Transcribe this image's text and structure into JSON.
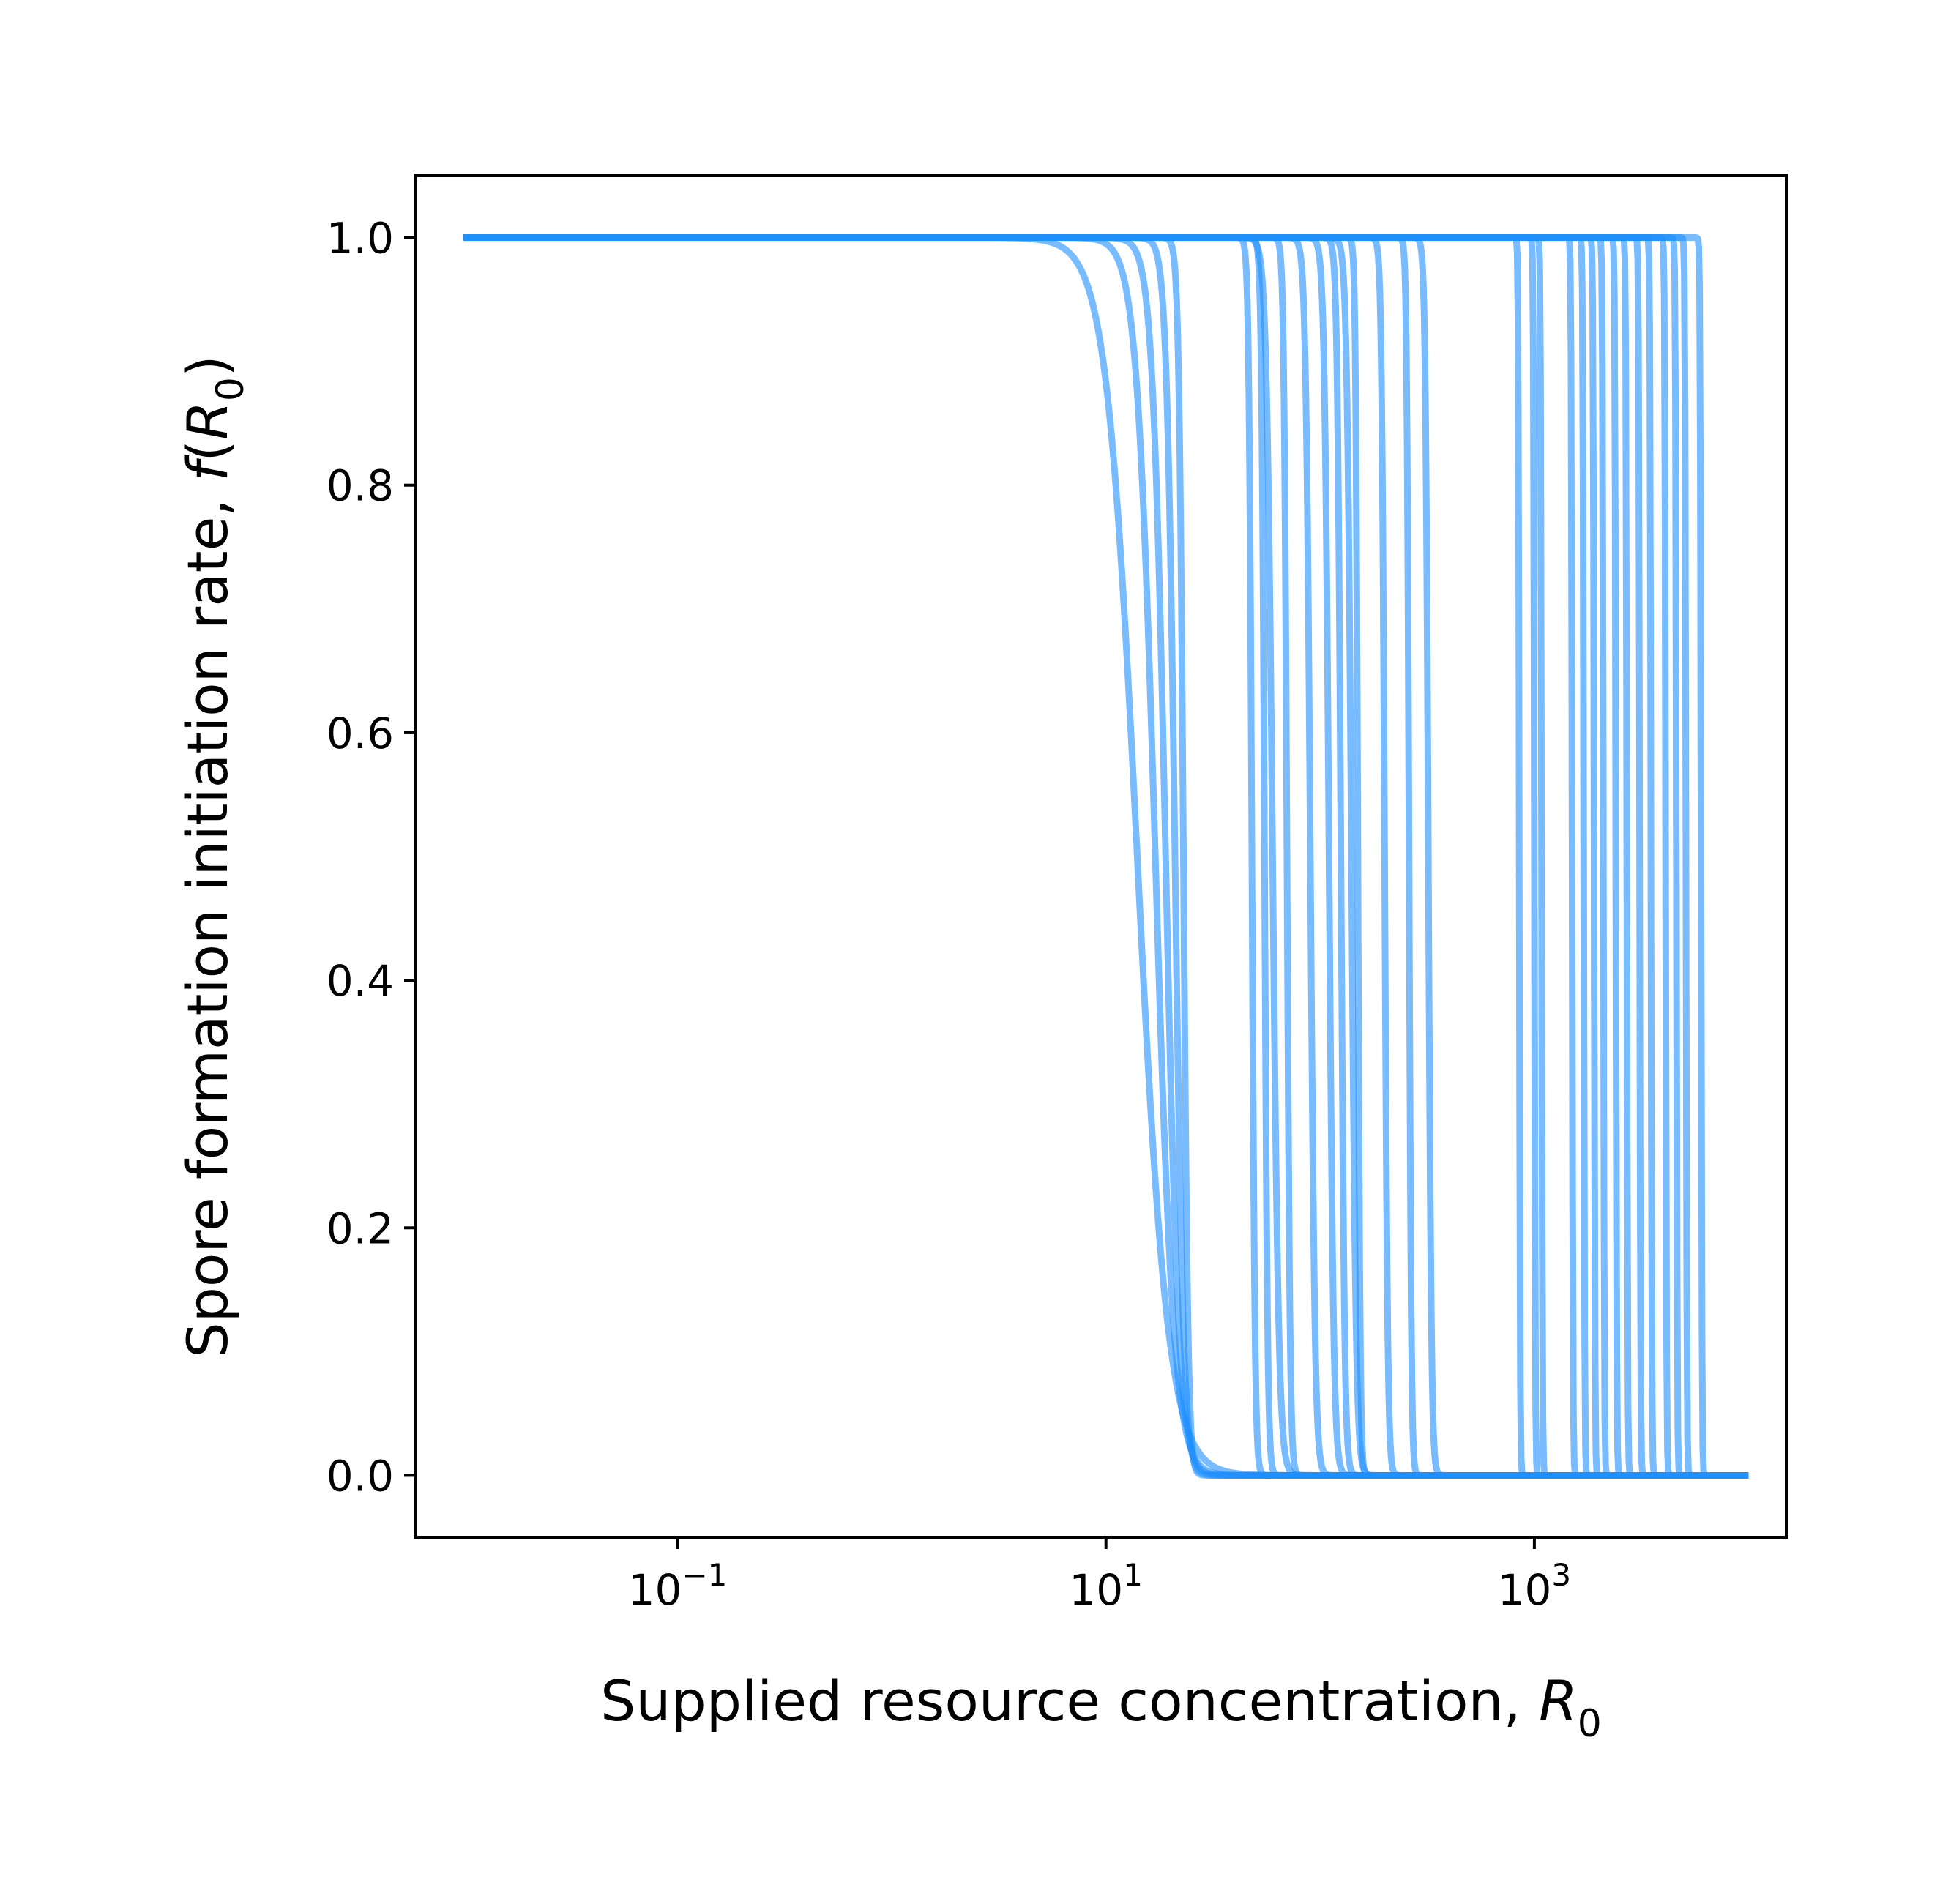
{
  "chart_data": {
    "type": "line",
    "title": "",
    "xlabel": "Supplied resource concentration, ",
    "xlabel_math": "R",
    "xlabel_sub": "0",
    "ylabel": "Spore formation initiation rate, ",
    "ylabel_math_f": "f",
    "ylabel_math_R": "R",
    "ylabel_sub": "0",
    "ylabel_open": "(",
    "ylabel_close": ")",
    "xscale": "log",
    "xlim": [
      0.006,
      15000
    ],
    "ylim": [
      -0.05,
      1.05
    ],
    "grid": false,
    "legend": "none",
    "line_color": "#1e90ff",
    "line_alpha": 0.6,
    "x_range": [
      0.01,
      10000
    ],
    "x_ticks": [
      {
        "value": 0.1,
        "base": "10",
        "exp": "−1"
      },
      {
        "value": 10,
        "base": "10",
        "exp": "1"
      },
      {
        "value": 1000,
        "base": "10",
        "exp": "3"
      }
    ],
    "y_ticks": [
      {
        "value": 0.0,
        "label": "0.0"
      },
      {
        "value": 0.2,
        "label": "0.2"
      },
      {
        "value": 0.4,
        "label": "0.4"
      },
      {
        "value": 0.6,
        "label": "0.6"
      },
      {
        "value": 0.8,
        "label": "0.8"
      },
      {
        "value": 1.0,
        "label": "1.0"
      }
    ],
    "series": [
      {
        "threshold": 14,
        "steepness": 6
      },
      {
        "threshold": 17,
        "steepness": 10
      },
      {
        "threshold": 19,
        "steepness": 14
      },
      {
        "threshold": 21,
        "steepness": 22
      },
      {
        "threshold": 23,
        "steepness": 40
      },
      {
        "threshold": 48,
        "steepness": 60
      },
      {
        "threshold": 55,
        "steepness": 60
      },
      {
        "threshold": 60,
        "steepness": 30
      },
      {
        "threshold": 70,
        "steepness": 60
      },
      {
        "threshold": 90,
        "steepness": 40
      },
      {
        "threshold": 110,
        "steepness": 40
      },
      {
        "threshold": 125,
        "steepness": 50
      },
      {
        "threshold": 140,
        "steepness": 40
      },
      {
        "threshold": 150,
        "steepness": 80
      },
      {
        "threshold": 200,
        "steepness": 60
      },
      {
        "threshold": 260,
        "steepness": 80
      },
      {
        "threshold": 320,
        "steepness": 60
      },
      {
        "threshold": 850,
        "steepness": 200
      },
      {
        "threshold": 1000,
        "steepness": 200
      },
      {
        "threshold": 1080,
        "steepness": 200
      },
      {
        "threshold": 1500,
        "steepness": 200
      },
      {
        "threshold": 1700,
        "steepness": 200
      },
      {
        "threshold": 1900,
        "steepness": 200
      },
      {
        "threshold": 2100,
        "steepness": 200
      },
      {
        "threshold": 2400,
        "steepness": 200
      },
      {
        "threshold": 2700,
        "steepness": 200
      },
      {
        "threshold": 3100,
        "steepness": 200
      },
      {
        "threshold": 3500,
        "steepness": 200
      },
      {
        "threshold": 4100,
        "steepness": 200
      },
      {
        "threshold": 4600,
        "steepness": 200
      },
      {
        "threshold": 5100,
        "steepness": 200
      },
      {
        "threshold": 6000,
        "steepness": 200
      }
    ]
  }
}
